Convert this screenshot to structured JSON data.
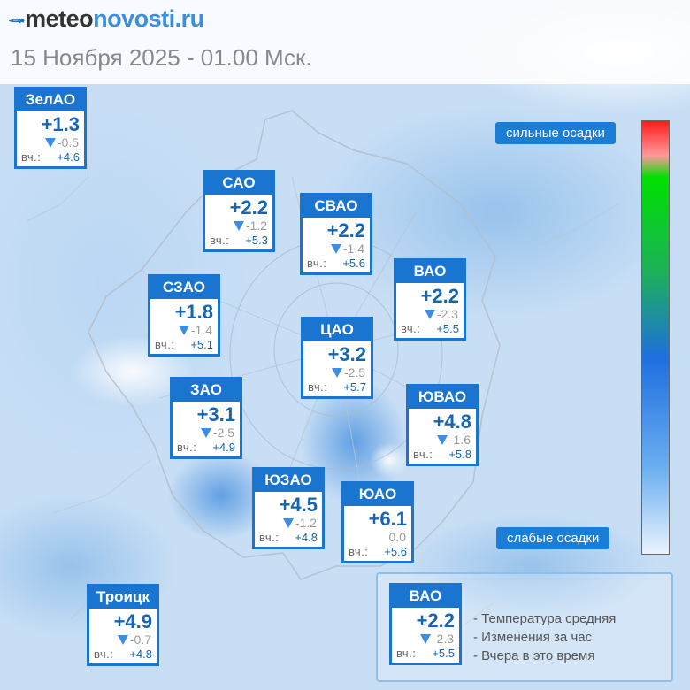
{
  "header": {
    "logo_prefix": "meteo",
    "logo_suffix": "novosti.ru",
    "datetime": "15 Ноября 2025 - 01.00 Мск."
  },
  "icons": {
    "logo": "logo-mark-icon",
    "change": "triangle-down-icon"
  },
  "colors": {
    "card_blue": "#1a75d1",
    "temp_blue": "#1565b4",
    "change_arrow": "#3c8ee0"
  },
  "districts": [
    {
      "name": "ЗелАО",
      "temp": "+1.3",
      "change": "-0.5",
      "change_dir": "down",
      "yesterday_label": "вч.:",
      "yesterday": "+4.6"
    },
    {
      "name": "САО",
      "temp": "+2.2",
      "change": "-1.2",
      "change_dir": "down",
      "yesterday_label": "вч.:",
      "yesterday": "+5.3"
    },
    {
      "name": "СВАО",
      "temp": "+2.2",
      "change": "-1.4",
      "change_dir": "down",
      "yesterday_label": "вч.:",
      "yesterday": "+5.6"
    },
    {
      "name": "ВАО",
      "temp": "+2.2",
      "change": "-2.3",
      "change_dir": "down",
      "yesterday_label": "вч.:",
      "yesterday": "+5.5"
    },
    {
      "name": "СЗАО",
      "temp": "+1.8",
      "change": "-1.4",
      "change_dir": "down",
      "yesterday_label": "вч.:",
      "yesterday": "+5.1"
    },
    {
      "name": "ЦАО",
      "temp": "+3.2",
      "change": "-2.5",
      "change_dir": "down",
      "yesterday_label": "вч.:",
      "yesterday": "+5.7"
    },
    {
      "name": "ЗАО",
      "temp": "+3.1",
      "change": "-2.5",
      "change_dir": "down",
      "yesterday_label": "вч.:",
      "yesterday": "+4.9"
    },
    {
      "name": "ЮВАО",
      "temp": "+4.8",
      "change": "-1.6",
      "change_dir": "down",
      "yesterday_label": "вч.:",
      "yesterday": "+5.8"
    },
    {
      "name": "ЮЗАО",
      "temp": "+4.5",
      "change": "-1.2",
      "change_dir": "down",
      "yesterday_label": "вч.:",
      "yesterday": "+4.8"
    },
    {
      "name": "ЮАО",
      "temp": "+6.1",
      "change": "0.0",
      "change_dir": "none",
      "yesterday_label": "вч.:",
      "yesterday": "+5.6"
    },
    {
      "name": "Троицк",
      "temp": "+4.9",
      "change": "-0.7",
      "change_dir": "down",
      "yesterday_label": "вч.:",
      "yesterday": "+4.8"
    }
  ],
  "precip_scale": {
    "top_label": "сильные осадки",
    "bottom_label": "слабые осадки"
  },
  "legend": {
    "sample": {
      "name": "ВАО",
      "temp": "+2.2",
      "change": "-2.3",
      "change_dir": "down",
      "yesterday_label": "вч.:",
      "yesterday": "+5.5"
    },
    "lines": [
      "- Температура средняя",
      "- Изменения за час",
      "- Вчера в это время"
    ]
  }
}
